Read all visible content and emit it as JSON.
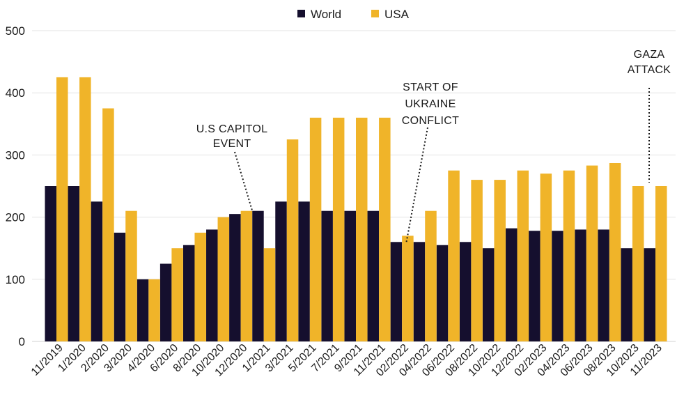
{
  "chart_data": {
    "type": "bar",
    "title": "",
    "xlabel": "",
    "ylabel": "",
    "ylim": [
      0,
      500
    ],
    "y_ticks": [
      0,
      100,
      200,
      300,
      400,
      500
    ],
    "grid": true,
    "legend_position": "top-center",
    "colors": {
      "World": "#150f2e",
      "USA": "#f0b429"
    },
    "categories": [
      "11/2019",
      "1/2020",
      "2/2020",
      "3/2020",
      "4/2020",
      "6/2020",
      "8/2020",
      "10/2020",
      "12/2020",
      "1/2021",
      "3/2021",
      "5/2021",
      "7/2021",
      "9/2021",
      "11/2021",
      "02/2022",
      "04/2022",
      "06/2022",
      "08/2022",
      "10/2022",
      "12/2022",
      "02/2023",
      "04/2023",
      "06/2023",
      "08/2023",
      "10/2023",
      "11/2023"
    ],
    "series": [
      {
        "name": "World",
        "values": [
          250,
          250,
          225,
          175,
          100,
          125,
          155,
          180,
          205,
          210,
          225,
          225,
          210,
          210,
          210,
          160,
          160,
          155,
          160,
          150,
          182,
          178,
          178,
          180,
          180,
          150,
          150
        ]
      },
      {
        "name": "USA",
        "values": [
          425,
          425,
          375,
          210,
          100,
          150,
          175,
          200,
          210,
          150,
          325,
          360,
          360,
          360,
          360,
          170,
          210,
          275,
          260,
          260,
          275,
          270,
          275,
          283,
          287,
          250,
          250
        ]
      }
    ],
    "annotations": [
      {
        "lines": [
          "U.S CAPITOL",
          "EVENT"
        ],
        "category": "1/2021"
      },
      {
        "lines": [
          "START OF",
          "UKRAINE",
          "CONFLICT"
        ],
        "category": "02/2022"
      },
      {
        "lines": [
          "GAZA",
          "ATTACK"
        ],
        "category": "10/2023"
      }
    ]
  }
}
